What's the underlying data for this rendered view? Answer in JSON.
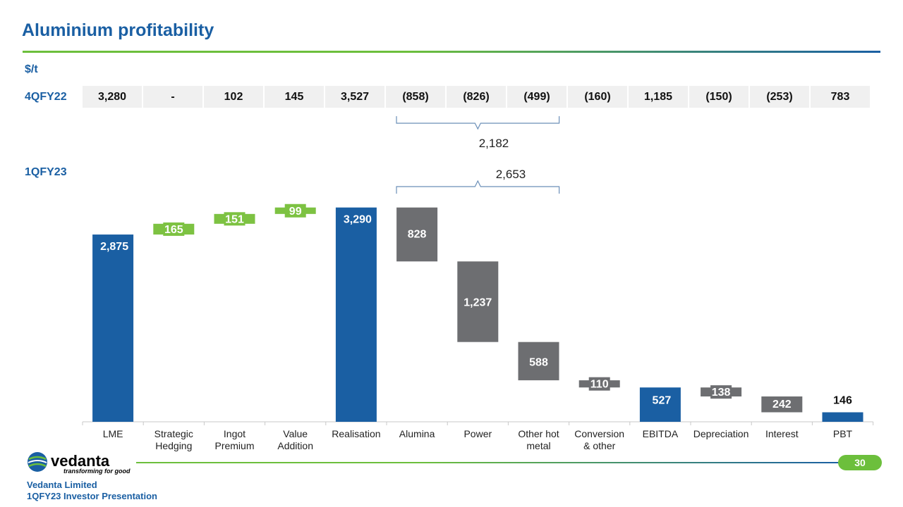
{
  "page": {
    "title": "Aluminium profitability",
    "unit": "$/t",
    "row_label_prev": "4QFY22",
    "row_label_curr": "1QFY23",
    "page_number": "30"
  },
  "comparison_row": [
    "3,280",
    "-",
    "102",
    "145",
    "3,527",
    "(858)",
    "(826)",
    "(499)",
    "(160)",
    "1,185",
    "(150)",
    "(253)",
    "783"
  ],
  "chart_data": {
    "type": "waterfall",
    "title": "Aluminium profitability",
    "ylabel": "$/t",
    "ylim": [
      0,
      3600
    ],
    "categories": [
      "LME",
      "Strategic Hedging",
      "Ingot Premium",
      "Value Addition",
      "Realisation",
      "Alumina",
      "Power",
      "Other hot metal",
      "Conversion & other",
      "EBITDA",
      "Depreciation",
      "Interest",
      "PBT"
    ],
    "bars": [
      {
        "category": "LME",
        "kind": "total",
        "start": 0,
        "end": 2875,
        "label": "2,875"
      },
      {
        "category": "Strategic Hedging",
        "kind": "increase",
        "start": 2875,
        "end": 3040,
        "label": "165"
      },
      {
        "category": "Ingot Premium",
        "kind": "increase",
        "start": 3040,
        "end": 3191,
        "label": "151"
      },
      {
        "category": "Value Addition",
        "kind": "increase",
        "start": 3191,
        "end": 3290,
        "label": "99"
      },
      {
        "category": "Realisation",
        "kind": "total",
        "start": 0,
        "end": 3290,
        "label": "3,290"
      },
      {
        "category": "Alumina",
        "kind": "decrease",
        "start": 3290,
        "end": 2462,
        "label": "828"
      },
      {
        "category": "Power",
        "kind": "decrease",
        "start": 2462,
        "end": 1225,
        "label": "1,237"
      },
      {
        "category": "Other hot metal",
        "kind": "decrease",
        "start": 1225,
        "end": 637,
        "label": "588"
      },
      {
        "category": "Conversion & other",
        "kind": "decrease",
        "start": 637,
        "end": 527,
        "label": "110"
      },
      {
        "category": "EBITDA",
        "kind": "total",
        "start": 0,
        "end": 527,
        "label": "527"
      },
      {
        "category": "Depreciation",
        "kind": "decrease",
        "start": 527,
        "end": 389,
        "label": "138"
      },
      {
        "category": "Interest",
        "kind": "decrease",
        "start": 389,
        "end": 146,
        "label": "242"
      },
      {
        "category": "PBT",
        "kind": "total",
        "start": 0,
        "end": 146,
        "label": "146"
      }
    ],
    "brackets": [
      {
        "label": "2,182",
        "from_category": "Alumina",
        "to_category": "Other hot metal",
        "row": "4QFY22"
      },
      {
        "label": "2,653",
        "from_category": "Alumina",
        "to_category": "Other hot metal",
        "row": "1QFY23"
      }
    ],
    "colors": {
      "total": "#1a5fa3",
      "increase": "#7dc242",
      "decrease": "#6d6e71"
    }
  },
  "footer": {
    "brand": "vedanta",
    "tagline": "transforming for good",
    "company": "Vedanta Limited",
    "presentation": "1QFY23 Investor Presentation"
  },
  "colors": {
    "accent_blue": "#1a5fa3",
    "accent_green": "#6cbf3c"
  }
}
